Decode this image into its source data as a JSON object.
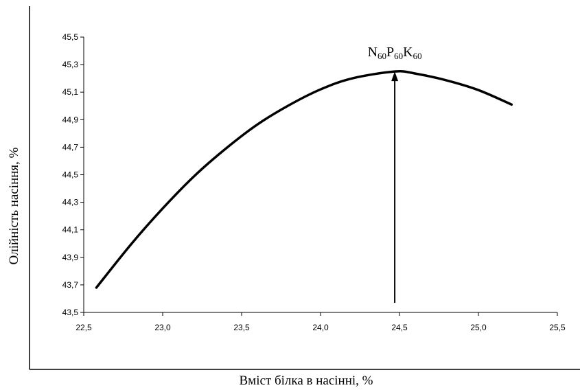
{
  "chart_data": {
    "type": "line",
    "title": "",
    "xlabel": "Вміст білка в насінні, %",
    "ylabel": "Олійність насіння, %",
    "xlim": [
      22.5,
      25.5
    ],
    "ylim": [
      43.5,
      45.5
    ],
    "x_ticks": [
      "22,5",
      "23,0",
      "23,5",
      "24,0",
      "24,5",
      "25,0",
      "25,5"
    ],
    "y_ticks": [
      "43,5",
      "43,7",
      "43,9",
      "44,1",
      "44,3",
      "44,5",
      "44,7",
      "44,9",
      "45,1",
      "45,3",
      "45,5"
    ],
    "grid": false,
    "legend": "none",
    "series": [
      {
        "x": [
          22.58,
          22.8,
          23.0,
          23.2,
          23.4,
          23.6,
          23.8,
          24.0,
          24.2,
          24.47,
          24.6,
          24.8,
          25.0,
          25.21
        ],
        "y": [
          43.68,
          43.995,
          44.255,
          44.49,
          44.69,
          44.865,
          45.005,
          45.12,
          45.2,
          45.25,
          45.235,
          45.185,
          45.115,
          45.01
        ]
      }
    ],
    "annotation": {
      "text_parts": [
        {
          "t": "N",
          "sub": false
        },
        {
          "t": "60",
          "sub": true
        },
        {
          "t": "P",
          "sub": false
        },
        {
          "t": "60",
          "sub": true
        },
        {
          "t": "K",
          "sub": false
        },
        {
          "t": "60",
          "sub": true
        }
      ],
      "arrow_x": 24.47,
      "arrow_from_y": 43.57,
      "arrow_to_y": 45.25
    }
  }
}
